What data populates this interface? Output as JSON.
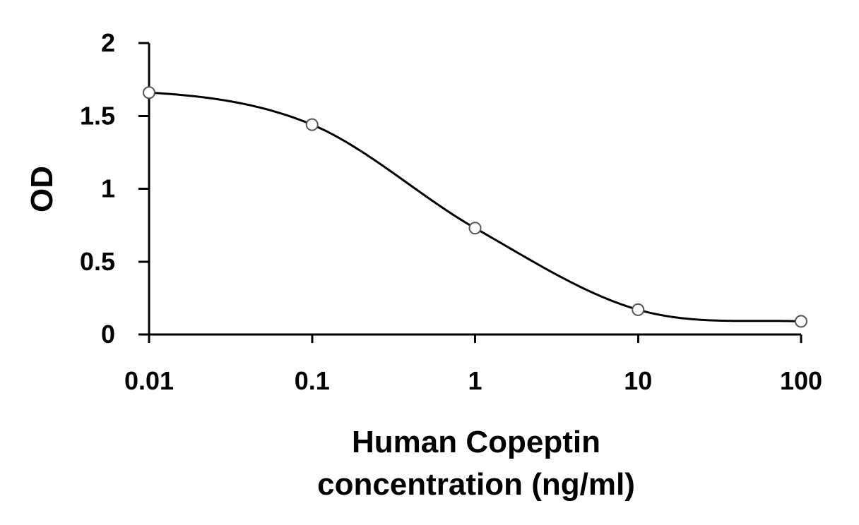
{
  "chart_data": {
    "type": "scatter",
    "title": "",
    "xlabel_lines": [
      "Human Copeptin",
      "concentration (ng/ml)"
    ],
    "ylabel": "OD",
    "x_scale": "log",
    "xlim": [
      0.01,
      100
    ],
    "ylim": [
      0,
      2
    ],
    "x_ticks": [
      0.01,
      0.1,
      1,
      10,
      100
    ],
    "x_tick_labels": [
      "0.01",
      "0.1",
      "1",
      "10",
      "100"
    ],
    "y_ticks": [
      0,
      0.5,
      1,
      1.5,
      2
    ],
    "y_tick_labels": [
      "0",
      "0.5",
      "1",
      "1.5",
      "2"
    ],
    "grid": false,
    "legend": "none",
    "series": [
      {
        "marker": "open-circle",
        "fit_line": "smooth",
        "x": [
          0.01,
          0.1,
          1,
          10,
          100
        ],
        "y": [
          1.66,
          1.44,
          0.73,
          0.17,
          0.09
        ]
      }
    ],
    "colors": {
      "axis": "#000000",
      "curve": "#000000",
      "marker_edge": "#555555",
      "marker_fill": "#ffffff"
    }
  }
}
